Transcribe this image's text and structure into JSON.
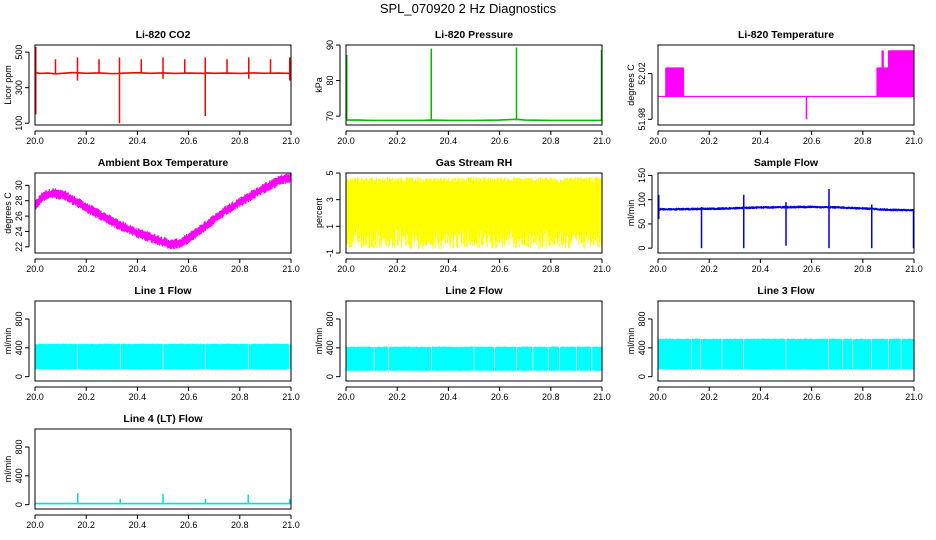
{
  "figure_title": "SPL_070920  2 Hz Diagnostics",
  "chart_data": [
    {
      "type": "line",
      "title": "Li-820 CO2",
      "ylabel": "Licor ppm",
      "color": "#ff0000",
      "xlim": [
        20.0,
        21.0
      ],
      "ylim": [
        90,
        540
      ],
      "x_ticks": [
        "20.0",
        "20.2",
        "20.4",
        "20.6",
        "20.8",
        "21.0"
      ],
      "y_ticks": [
        100,
        300,
        500
      ],
      "series": [
        {
          "x": [
            20.0,
            20.02,
            20.05,
            20.08,
            20.1,
            20.15,
            20.2,
            20.25,
            20.3,
            20.33,
            20.35,
            20.4,
            20.45,
            20.5,
            20.55,
            20.6,
            20.65,
            20.66,
            20.67,
            20.7,
            20.75,
            20.8,
            20.85,
            20.9,
            20.95,
            21.0
          ],
          "values": [
            385,
            380,
            382,
            378,
            380,
            385,
            381,
            383,
            379,
            380,
            382,
            384,
            381,
            383,
            380,
            382,
            381,
            380,
            383,
            381,
            382,
            380,
            383,
            381,
            382,
            380
          ]
        }
      ],
      "spikes": [
        {
          "x": 20.003,
          "low": 150,
          "high": 530
        },
        {
          "x": 20.08,
          "low": 380,
          "high": 460
        },
        {
          "x": 20.166,
          "low": 340,
          "high": 470
        },
        {
          "x": 20.25,
          "low": 380,
          "high": 460
        },
        {
          "x": 20.33,
          "low": 100,
          "high": 470
        },
        {
          "x": 20.415,
          "low": 380,
          "high": 460
        },
        {
          "x": 20.5,
          "low": 350,
          "high": 470
        },
        {
          "x": 20.585,
          "low": 380,
          "high": 460
        },
        {
          "x": 20.665,
          "low": 140,
          "high": 470
        },
        {
          "x": 20.75,
          "low": 380,
          "high": 460
        },
        {
          "x": 20.835,
          "low": 350,
          "high": 470
        },
        {
          "x": 20.92,
          "low": 380,
          "high": 460
        },
        {
          "x": 20.995,
          "low": 340,
          "high": 470
        }
      ]
    },
    {
      "type": "line",
      "title": "Li-820 Pressure",
      "ylabel": "kPa",
      "color": "#00bb00",
      "xlim": [
        20.0,
        21.0
      ],
      "ylim": [
        67.5,
        90
      ],
      "x_ticks": [
        "20.0",
        "20.2",
        "20.4",
        "20.6",
        "20.8",
        "21.0"
      ],
      "y_ticks": [
        70,
        80,
        90
      ],
      "series": [
        {
          "x": [
            20.0,
            20.05,
            20.1,
            20.2,
            20.3,
            20.33,
            20.4,
            20.5,
            20.6,
            20.666,
            20.7,
            20.8,
            20.9,
            21.0
          ],
          "values": [
            68.9,
            68.9,
            68.8,
            68.8,
            68.8,
            68.9,
            68.8,
            68.8,
            68.9,
            69.1,
            68.9,
            68.8,
            68.8,
            68.8
          ]
        }
      ],
      "spikes": [
        {
          "x": 20.003,
          "low": 68.9,
          "high": 87.2
        },
        {
          "x": 20.333,
          "low": 68.8,
          "high": 89.0
        },
        {
          "x": 20.666,
          "low": 68.8,
          "high": 89.3
        },
        {
          "x": 20.998,
          "low": 68.8,
          "high": 88.6
        }
      ]
    },
    {
      "type": "line",
      "title": "Li-820 Temperature",
      "ylabel": "degrees C",
      "color": "#ff00ff",
      "xlim": [
        20.0,
        21.0
      ],
      "ylim": [
        51.975,
        52.045
      ],
      "x_ticks": [
        "20.0",
        "20.2",
        "20.4",
        "20.6",
        "20.8",
        "21.0"
      ],
      "y_ticks": [
        51.98,
        52.02
      ],
      "y_tick_labels": [
        "51.98",
        "52.02"
      ],
      "baseline": 52.0,
      "bands": [
        {
          "x0": 20.03,
          "x1": 20.1,
          "low": 52.0,
          "high": 52.025
        },
        {
          "x0": 20.855,
          "x1": 20.875,
          "low": 52.0,
          "high": 52.025
        },
        {
          "x0": 20.875,
          "x1": 20.88,
          "low": 52.0,
          "high": 52.04
        },
        {
          "x0": 20.88,
          "x1": 20.9,
          "low": 52.0,
          "high": 52.025
        },
        {
          "x0": 20.9,
          "x1": 21.0,
          "low": 52.0,
          "high": 52.04
        }
      ],
      "spikes": [
        {
          "x": 20.58,
          "low": 51.98,
          "high": 52.0
        }
      ]
    },
    {
      "type": "line",
      "title": "Ambient Box Temperature",
      "ylabel": "degrees C",
      "color": "#ff00ff",
      "xlim": [
        20.0,
        21.0
      ],
      "ylim": [
        21.2,
        31.6
      ],
      "x_ticks": [
        "20.0",
        "20.2",
        "20.4",
        "20.6",
        "20.8",
        "21.0"
      ],
      "y_ticks": [
        22,
        24,
        26,
        28,
        30
      ],
      "noise_amplitude": 0.7,
      "series": [
        {
          "x": [
            20.0,
            20.03,
            20.07,
            20.12,
            20.18,
            20.25,
            20.32,
            20.4,
            20.48,
            20.53,
            20.57,
            20.62,
            20.68,
            20.75,
            20.82,
            20.9,
            20.96,
            21.0
          ],
          "values": [
            27.3,
            28.6,
            29.0,
            28.6,
            27.5,
            26.2,
            25.0,
            23.8,
            22.9,
            22.3,
            22.5,
            23.6,
            25.1,
            26.8,
            28.2,
            29.7,
            30.7,
            31.0
          ]
        }
      ]
    },
    {
      "type": "area",
      "title": "Gas Stream RH",
      "ylabel": "percent",
      "color": "#ffff00",
      "xlim": [
        20.0,
        21.0
      ],
      "ylim": [
        -1,
        5
      ],
      "x_ticks": [
        "20.0",
        "20.2",
        "20.4",
        "20.6",
        "20.8",
        "21.0"
      ],
      "y_ticks": [
        -1,
        1,
        3,
        5
      ],
      "band": {
        "low": -0.7,
        "high": 4.7,
        "core_low": 1.0,
        "core_high": 4.2
      }
    },
    {
      "type": "line",
      "title": "Sample Flow",
      "ylabel": "ml/min",
      "color": "#0000dd",
      "xlim": [
        20.0,
        21.0
      ],
      "ylim": [
        -10,
        155
      ],
      "x_ticks": [
        "20.0",
        "20.2",
        "20.4",
        "20.6",
        "20.8",
        "21.0"
      ],
      "y_ticks": [
        0,
        50,
        100,
        150
      ],
      "noise_amplitude": 3,
      "series": [
        {
          "x": [
            20.0,
            20.2,
            20.4,
            20.6,
            20.7,
            20.8,
            20.9,
            21.0
          ],
          "values": [
            80,
            81,
            84,
            85,
            84,
            82,
            79,
            78
          ]
        }
      ],
      "spikes": [
        {
          "x": 20.003,
          "low": 60,
          "high": 110
        },
        {
          "x": 20.17,
          "low": 0,
          "high": 85
        },
        {
          "x": 20.335,
          "low": 0,
          "high": 110
        },
        {
          "x": 20.5,
          "low": 5,
          "high": 95
        },
        {
          "x": 20.668,
          "low": 0,
          "high": 122
        },
        {
          "x": 20.835,
          "low": 0,
          "high": 90
        },
        {
          "x": 20.998,
          "low": 0,
          "high": 80
        }
      ]
    },
    {
      "type": "area",
      "title": "Line 1 Flow",
      "ylabel": "ml/min",
      "color": "#00ffff",
      "xlim": [
        20.0,
        21.0
      ],
      "ylim": [
        -60,
        1050
      ],
      "x_ticks": [
        "20.0",
        "20.2",
        "20.4",
        "20.6",
        "20.8",
        "21.0"
      ],
      "y_ticks": [
        0,
        400,
        800
      ],
      "band": {
        "low": 100,
        "high": 460
      },
      "gaps": [
        20.167,
        20.333,
        20.5,
        20.666,
        20.833,
        20.995
      ]
    },
    {
      "type": "area",
      "title": "Line 2 Flow",
      "ylabel": "ml/min",
      "color": "#00ffff",
      "xlim": [
        20.0,
        21.0
      ],
      "ylim": [
        -60,
        1050
      ],
      "x_ticks": [
        "20.0",
        "20.2",
        "20.4",
        "20.6",
        "20.8",
        "21.0"
      ],
      "y_ticks": [
        0,
        400,
        800
      ],
      "band": {
        "low": 80,
        "high": 420
      },
      "gaps": [
        20.11,
        20.167,
        20.333,
        20.5,
        20.58,
        20.666,
        20.73,
        20.79,
        20.833,
        20.9,
        20.96
      ]
    },
    {
      "type": "area",
      "title": "Line 3 Flow",
      "ylabel": "ml/min",
      "color": "#00ffff",
      "xlim": [
        20.0,
        21.0
      ],
      "ylim": [
        -60,
        1050
      ],
      "x_ticks": [
        "20.0",
        "20.2",
        "20.4",
        "20.6",
        "20.8",
        "21.0"
      ],
      "y_ticks": [
        0,
        400,
        800
      ],
      "band": {
        "low": 100,
        "high": 530
      },
      "gaps": [
        20.13,
        20.167,
        20.25,
        20.333,
        20.5,
        20.666,
        20.72,
        20.76,
        20.833,
        20.9,
        20.95
      ]
    },
    {
      "type": "line",
      "title": "Line 4 (LT) Flow",
      "ylabel": "ml/min",
      "color": "#00dddd",
      "xlim": [
        20.0,
        21.0
      ],
      "ylim": [
        -60,
        1050
      ],
      "x_ticks": [
        "20.0",
        "20.2",
        "20.4",
        "20.6",
        "20.8",
        "21.0"
      ],
      "y_ticks": [
        0,
        400,
        800
      ],
      "series": [
        {
          "x": [
            20.0,
            21.0
          ],
          "values": [
            15,
            15
          ]
        }
      ],
      "spikes": [
        {
          "x": 20.167,
          "low": 15,
          "high": 160
        },
        {
          "x": 20.333,
          "low": 15,
          "high": 80
        },
        {
          "x": 20.5,
          "low": 15,
          "high": 150
        },
        {
          "x": 20.666,
          "low": 15,
          "high": 80
        },
        {
          "x": 20.833,
          "low": 15,
          "high": 140
        },
        {
          "x": 20.995,
          "low": 15,
          "high": 80
        }
      ]
    }
  ]
}
